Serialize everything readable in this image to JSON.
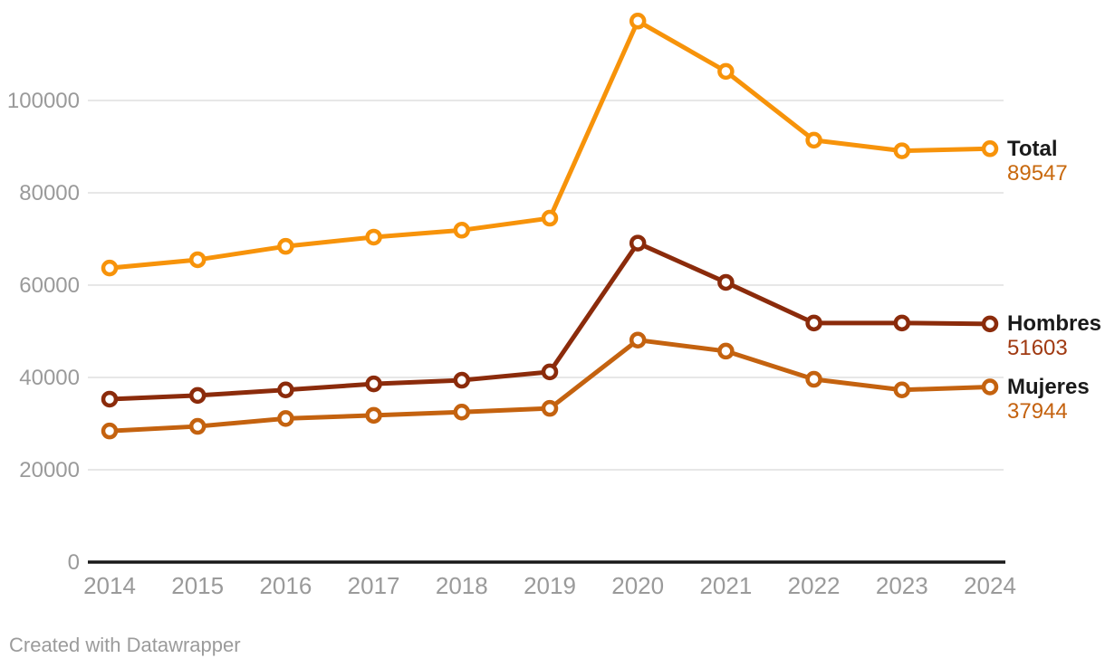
{
  "chart_data": {
    "type": "line",
    "categories": [
      "2014",
      "2015",
      "2016",
      "2017",
      "2018",
      "2019",
      "2020",
      "2021",
      "2022",
      "2023",
      "2024"
    ],
    "series": [
      {
        "name": "Total",
        "color": "#f7930a",
        "value_color": "#c8690e",
        "values": [
          63700,
          65500,
          68400,
          70400,
          71900,
          74500,
          117200,
          106300,
          91400,
          89100,
          89547
        ],
        "end_label": "89547"
      },
      {
        "name": "Hombres",
        "color": "#8b2b0b",
        "value_color": "#a03a12",
        "values": [
          35300,
          36100,
          37300,
          38600,
          39400,
          41200,
          69100,
          60600,
          51800,
          51800,
          51603
        ],
        "end_label": "51603"
      },
      {
        "name": "Mujeres",
        "color": "#c4620f",
        "value_color": "#c4620f",
        "values": [
          28400,
          29400,
          31100,
          31800,
          32500,
          33300,
          48100,
          45700,
          39600,
          37300,
          37944
        ],
        "end_label": "37944"
      }
    ],
    "yticks": [
      0,
      20000,
      40000,
      60000,
      80000,
      100000
    ],
    "ytick_labels": [
      "0",
      "20000",
      "40000",
      "60000",
      "80000",
      "100000"
    ],
    "ylim": [
      0,
      121500
    ],
    "grid": true,
    "legend_position": "right-end-of-line",
    "marker": "open-circle"
  },
  "colors": {
    "background": "#ffffff",
    "grid": "#e7e7e7",
    "baseline": "#1a1a1a",
    "axis_text": "#9a9a9a",
    "legend_name_text": "#1a1a1a",
    "footer_text": "#9b9b9b"
  },
  "footer": {
    "text": "Created with Datawrapper"
  }
}
